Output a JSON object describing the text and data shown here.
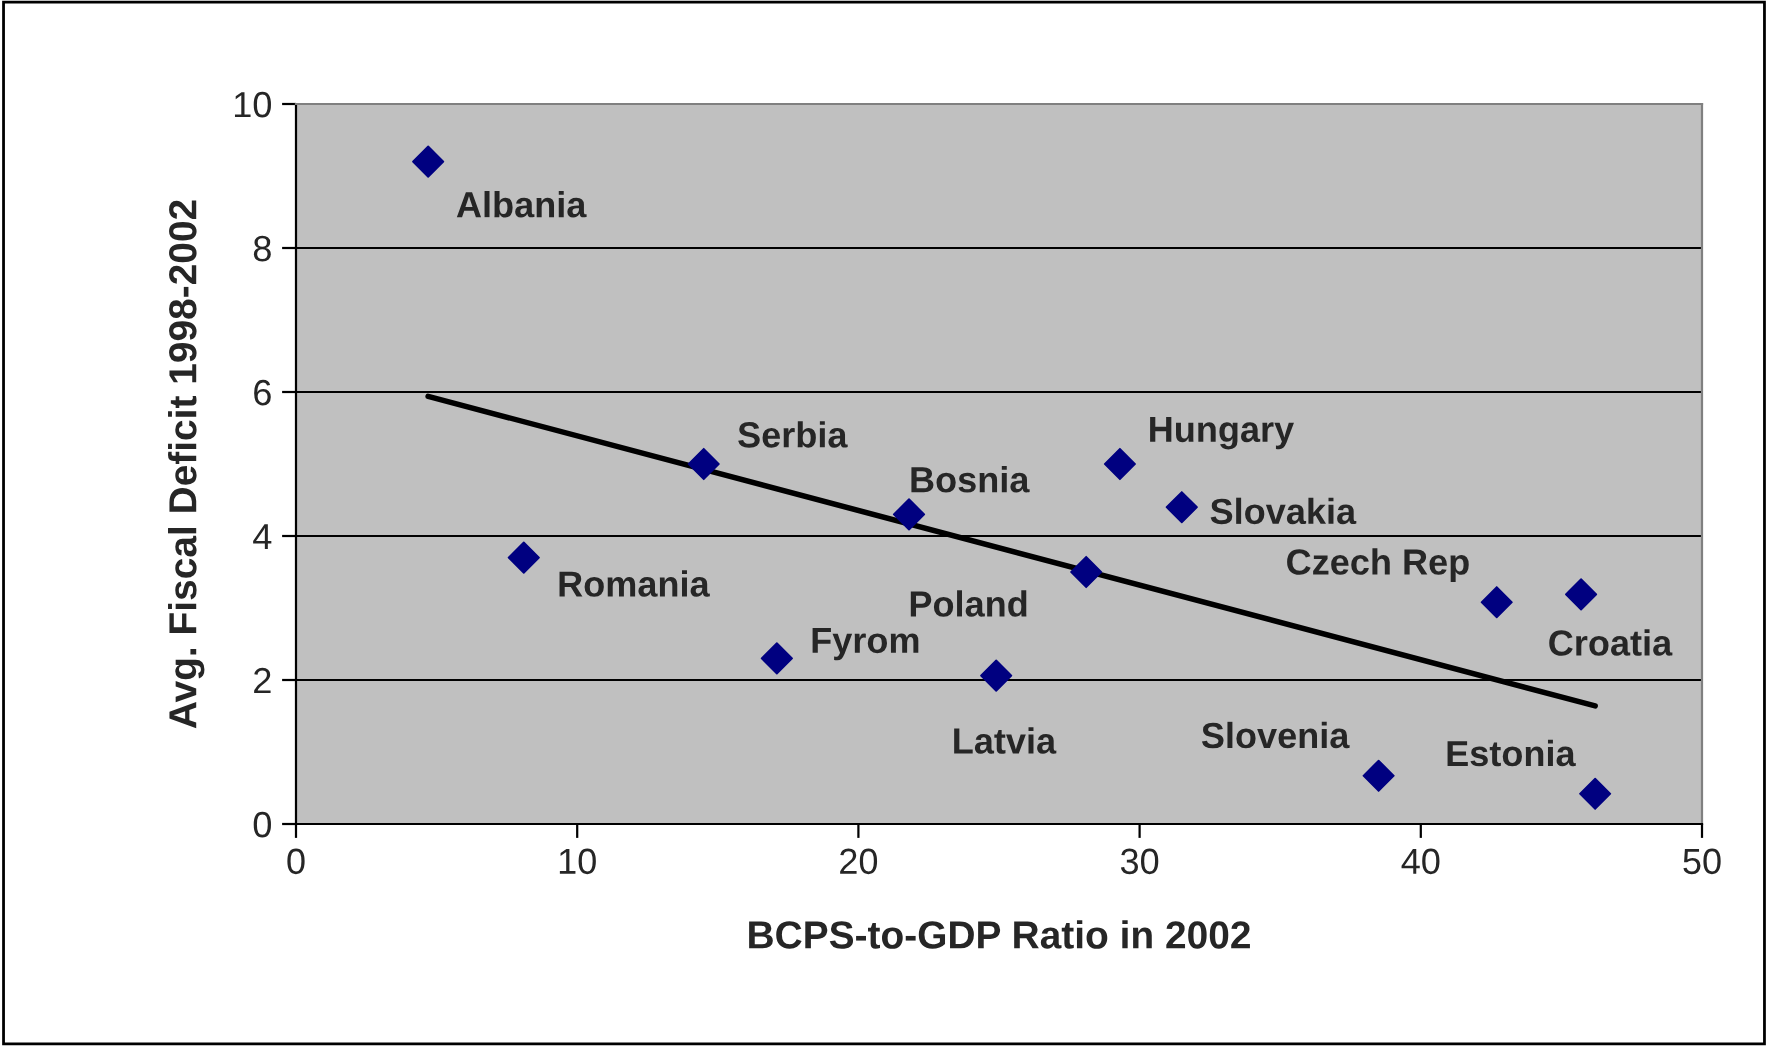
{
  "chart_data": {
    "type": "scatter",
    "xlabel": "BCPS-to-GDP Ratio in 2002",
    "ylabel": "Avg. Fiscal Deficit 1998-2002",
    "xlim": [
      0,
      50
    ],
    "xticks": [
      0,
      10,
      20,
      30,
      40,
      50
    ],
    "ylim": [
      0,
      10
    ],
    "yticks": [
      0,
      2,
      4,
      6,
      8,
      10
    ],
    "grid": "y",
    "series": [
      {
        "color": "#000080",
        "x": [
          4.7,
          8.1,
          14.5,
          17.1,
          21.8,
          24.9,
          28.1,
          29.3,
          31.5,
          38.5,
          42.7,
          45.7,
          46.2
        ],
        "marker": "diamond",
        "values": [
          9.2,
          3.7,
          5.0,
          2.3,
          4.3,
          2.06,
          3.5,
          5.0,
          4.4,
          0.67,
          3.08,
          3.19,
          0.42
        ]
      },
      {
        "type": "line",
        "color": "#000000",
        "x": [
          4.7,
          46.2
        ],
        "values": [
          5.94,
          1.64
        ]
      }
    ],
    "annotations": [
      {
        "text": "Albania",
        "x": 4.7,
        "y": 9.2
      },
      {
        "text": "Romania",
        "x": 8.1,
        "y": 3.7
      },
      {
        "text": "Serbia",
        "x": 14.5,
        "y": 5.0
      },
      {
        "text": "Fyrom",
        "x": 17.1,
        "y": 2.3
      },
      {
        "text": "Bosnia",
        "x": 21.8,
        "y": 4.3
      },
      {
        "text": "Latvia",
        "x": 24.9,
        "y": 2.06
      },
      {
        "text": "Poland",
        "x": 28.1,
        "y": 3.5
      },
      {
        "text": "Hungary",
        "x": 29.3,
        "y": 5.0
      },
      {
        "text": "Slovakia",
        "x": 31.5,
        "y": 4.4
      },
      {
        "text": "Slovenia",
        "x": 38.5,
        "y": 0.67
      },
      {
        "text": "Czech Rep",
        "x": 42.7,
        "y": 3.08
      },
      {
        "text": "Croatia",
        "x": 45.7,
        "y": 3.19
      },
      {
        "text": "Estonia",
        "x": 46.2,
        "y": 0.42
      }
    ]
  }
}
